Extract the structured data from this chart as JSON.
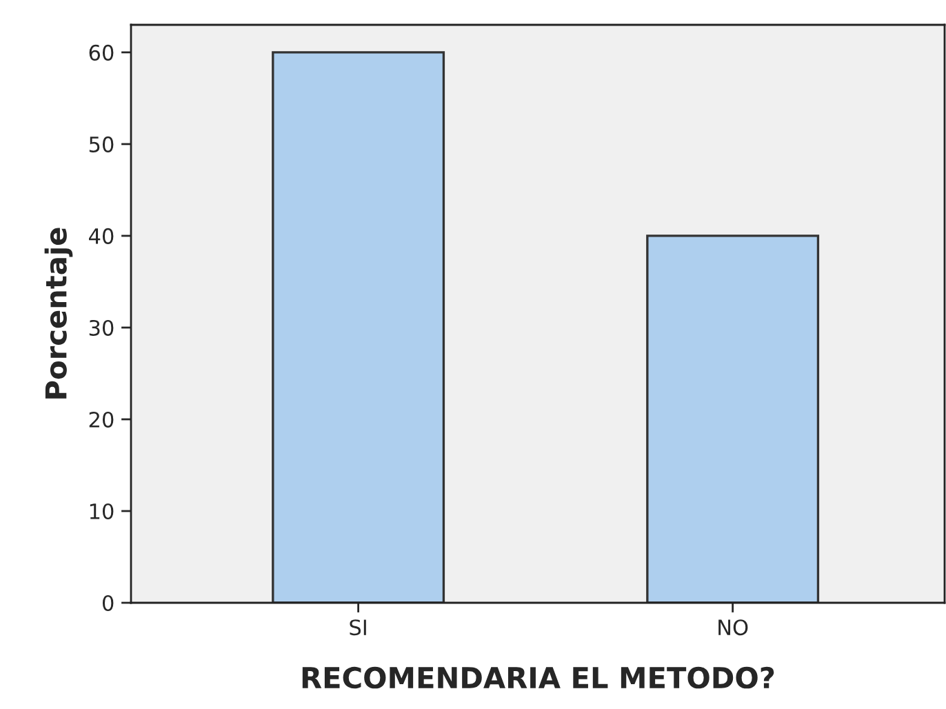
{
  "chart_data": {
    "type": "bar",
    "xlabel": "RECOMENDARIA EL METODO?",
    "ylabel": "Porcentaje",
    "categories": [
      "SI",
      "NO"
    ],
    "values": [
      60,
      40
    ],
    "color": "#aecfee",
    "ylim": [
      0,
      63
    ],
    "yticks": [
      0,
      10,
      20,
      30,
      40,
      50,
      60
    ],
    "grid": false
  }
}
